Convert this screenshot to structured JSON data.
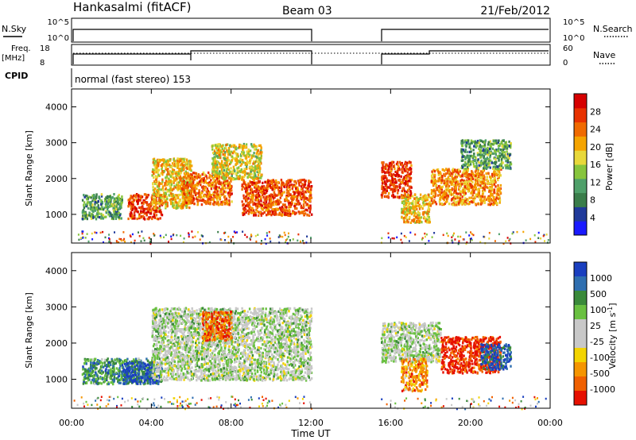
{
  "header": {
    "station": "Hankasalmi (fitACF)",
    "beam": "Beam 03",
    "date": "21/Feb/2012"
  },
  "status_panels": {
    "nsky_label": "N.Sky",
    "nsky_ticks": [
      "10^5",
      "10^0"
    ],
    "nsearch_label": "N.Search",
    "freq_label": "Freq.",
    "freq_unit": "[MHz]",
    "freq_ticks": [
      "18",
      "8"
    ],
    "nave_label": "Nave",
    "nave_ticks": [
      "60",
      "0"
    ],
    "cpid_label": "CPID",
    "cpid_value": "normal (fast stereo) 153"
  },
  "colors": {
    "power": [
      "#1a1aff",
      "#203a9a",
      "#3a7d4a",
      "#4fa06a",
      "#87c53c",
      "#e8d83a",
      "#f5a400",
      "#f06a00",
      "#e83200",
      "#d60000"
    ],
    "velocity": [
      "#1a3fbf",
      "#2f6fb0",
      "#3a8a3a",
      "#69c040",
      "#c8c8c8",
      "#c8c8c8",
      "#f3d400",
      "#f59500",
      "#f06000",
      "#e61000"
    ]
  },
  "chart_data": [
    {
      "type": "heatmap",
      "name": "power",
      "ylabel": "Slant Range [km]",
      "x_ticks": [
        "00:00",
        "04:00",
        "08:00",
        "12:00",
        "16:00",
        "20:00",
        "00:00"
      ],
      "y_ticks": [
        "1000",
        "2000",
        "3000",
        "4000"
      ],
      "ylim": [
        200,
        4500
      ],
      "xlim_hours": [
        0,
        24
      ],
      "data_gap_hours": [
        12,
        15.5
      ],
      "colorbar_label": "Power [dB]",
      "colorbar_ticks": [
        "4",
        "8",
        "12",
        "16",
        "20",
        "24",
        "28"
      ],
      "colorbar_range": [
        0,
        32
      ],
      "bands": [
        {
          "t": [
            0.5,
            2.5
          ],
          "range": [
            900,
            1600
          ],
          "level": 0.35
        },
        {
          "t": [
            2.8,
            4.5
          ],
          "range": [
            900,
            1600
          ],
          "level": 0.85
        },
        {
          "t": [
            4.0,
            6.0
          ],
          "range": [
            1200,
            2600
          ],
          "level": 0.6
        },
        {
          "t": [
            5.5,
            8.0
          ],
          "range": [
            1300,
            2200
          ],
          "level": 0.75
        },
        {
          "t": [
            7.0,
            9.5
          ],
          "range": [
            2000,
            3000
          ],
          "level": 0.55
        },
        {
          "t": [
            8.5,
            12.0
          ],
          "range": [
            1000,
            2000
          ],
          "level": 0.8
        },
        {
          "t": [
            15.5,
            17.0
          ],
          "range": [
            1500,
            2500
          ],
          "level": 0.85
        },
        {
          "t": [
            16.5,
            18.0
          ],
          "range": [
            800,
            1600
          ],
          "level": 0.6
        },
        {
          "t": [
            18.0,
            21.5
          ],
          "range": [
            1300,
            2300
          ],
          "level": 0.7
        },
        {
          "t": [
            19.5,
            22.0
          ],
          "range": [
            2300,
            3100
          ],
          "level": 0.35
        }
      ]
    },
    {
      "type": "heatmap",
      "name": "velocity",
      "xlabel": "Time UT",
      "ylabel": "Slant Range [km]",
      "x_ticks": [
        "00:00",
        "04:00",
        "08:00",
        "12:00",
        "16:00",
        "20:00",
        "00:00"
      ],
      "y_ticks": [
        "1000",
        "2000",
        "3000",
        "4000"
      ],
      "ylim": [
        200,
        4500
      ],
      "xlim_hours": [
        0,
        24
      ],
      "data_gap_hours": [
        12,
        15.5
      ],
      "colorbar_label": "Velocity [m s^-1]",
      "colorbar_ticks": [
        "1000",
        "500",
        "100",
        "25",
        "-25",
        "-100",
        "-500",
        "-1000"
      ],
      "bands": [
        {
          "t": [
            0.5,
            4.0
          ],
          "range": [
            900,
            1600
          ],
          "level": 0.25
        },
        {
          "t": [
            2.5,
            4.5
          ],
          "range": [
            900,
            1500
          ],
          "level": 0.1
        },
        {
          "t": [
            4.0,
            12.0
          ],
          "range": [
            1000,
            3000
          ],
          "level": 0.45
        },
        {
          "t": [
            6.5,
            8.0
          ],
          "range": [
            2100,
            2900
          ],
          "level": 0.85
        },
        {
          "t": [
            15.5,
            18.5
          ],
          "range": [
            1500,
            2600
          ],
          "level": 0.45
        },
        {
          "t": [
            16.5,
            17.8
          ],
          "range": [
            700,
            1600
          ],
          "level": 0.75
        },
        {
          "t": [
            18.5,
            21.5
          ],
          "range": [
            1200,
            2200
          ],
          "level": 0.95
        },
        {
          "t": [
            20.5,
            22.0
          ],
          "range": [
            1300,
            2000
          ],
          "level": 0.1
        }
      ]
    }
  ]
}
